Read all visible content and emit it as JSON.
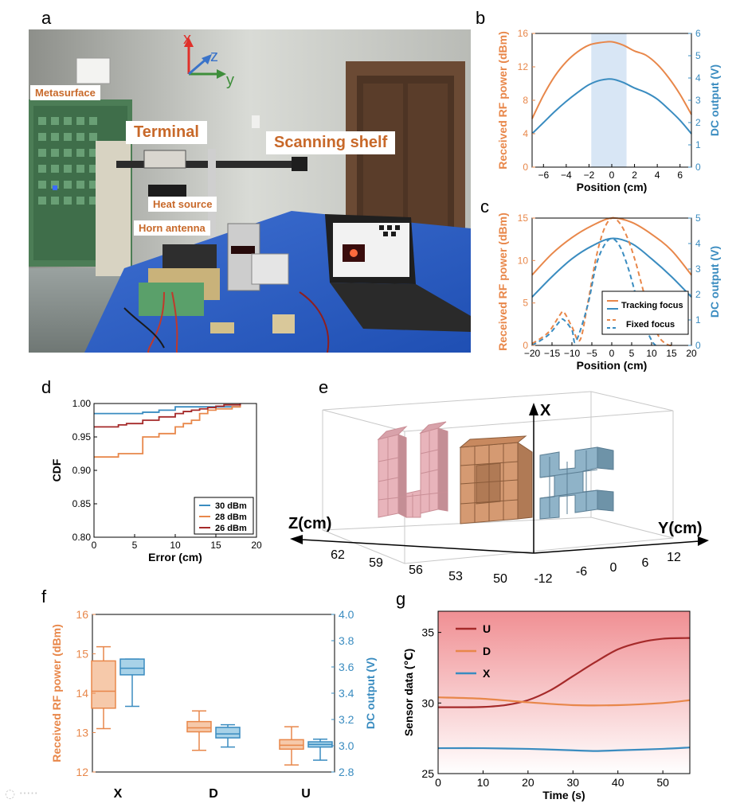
{
  "panels": {
    "a": "a",
    "b": "b",
    "c": "c",
    "d": "d",
    "e": "e",
    "f": "f",
    "g": "g"
  },
  "photo": {
    "labels": {
      "metasurface": "Metasurface",
      "terminal": "Terminal",
      "scanning_shelf": "Scanning shelf",
      "heat_source": "Heat source",
      "horn_antenna": "Horn antenna"
    },
    "axes": {
      "x": "x",
      "z": "z",
      "y": "y"
    },
    "colors": {
      "x": "#e0302a",
      "z": "#3a73c9",
      "y": "#3e8e3a"
    }
  },
  "colors": {
    "orange": "#e8874a",
    "blue": "#3a8cc0",
    "darkred": "#a52a2a",
    "shade": "#d8e6f5"
  },
  "panel_b": {
    "xlabel": "Position (cm)",
    "ylabel_left": "Received RF power (dBm)",
    "ylabel_right": "DC output (V)",
    "xticks": [
      "−6",
      "−4",
      "−2",
      "0",
      "2",
      "4",
      "6"
    ],
    "yticks_left": [
      "0",
      "4",
      "8",
      "12",
      "16"
    ],
    "yticks_right": [
      "0",
      "1",
      "2",
      "3",
      "4",
      "5",
      "6"
    ]
  },
  "panel_c": {
    "xlabel": "Position (cm)",
    "ylabel_left": "Received RF power (dBm)",
    "ylabel_right": "DC output (V)",
    "xticks": [
      "−20",
      "−15",
      "−10",
      "−5",
      "0",
      "5",
      "10",
      "15",
      "20"
    ],
    "yticks_left": [
      "0",
      "5",
      "10",
      "15"
    ],
    "yticks_right": [
      "0",
      "1",
      "2",
      "3",
      "4",
      "5"
    ],
    "legend": [
      "Tracking focus",
      "Fixed focus"
    ]
  },
  "panel_d": {
    "xlabel": "Error (cm)",
    "ylabel": "CDF",
    "xticks": [
      "0",
      "5",
      "10",
      "15",
      "20"
    ],
    "yticks": [
      "0.80",
      "0.85",
      "0.90",
      "0.95",
      "1.00"
    ],
    "legend": [
      "30 dBm",
      "28 dBm",
      "26 dBm"
    ]
  },
  "panel_e": {
    "axis_x": "X",
    "axis_y": "Y(cm)",
    "axis_z": "Z(cm)",
    "zticks": [
      "62",
      "59",
      "56",
      "53",
      "50"
    ],
    "yticks": [
      "-12",
      "-6",
      "0",
      "6",
      "12"
    ]
  },
  "panel_f": {
    "ylabel_left": "Received RF power (dBm)",
    "ylabel_right": "DC output (V)",
    "categories": [
      "X",
      "D",
      "U"
    ],
    "yticks_left": [
      "12",
      "13",
      "14",
      "15",
      "16"
    ],
    "yticks_right": [
      "2.8",
      "3.0",
      "3.2",
      "3.4",
      "3.6",
      "3.8",
      "4.0"
    ]
  },
  "panel_g": {
    "xlabel": "Time (s)",
    "ylabel": "Sensor data (℃)",
    "xticks": [
      "0",
      "10",
      "20",
      "30",
      "40",
      "50"
    ],
    "yticks": [
      "25",
      "30",
      "35"
    ],
    "legend": [
      "U",
      "D",
      "X"
    ]
  },
  "chart_data": [
    {
      "panel": "b",
      "type": "line",
      "xlabel": "Position (cm)",
      "ylabel": "Received RF power (dBm)",
      "ylabel_right": "DC output (V)",
      "xlim": [
        -7,
        7
      ],
      "ylim": [
        0,
        16
      ],
      "ylim_right": [
        0,
        6
      ],
      "shaded_region": [
        -1.8,
        1.3
      ],
      "series": [
        {
          "axis": "left",
          "x": [
            -7,
            -6,
            -5,
            -4,
            -3,
            -2,
            -1,
            0,
            1,
            2,
            3,
            4,
            5,
            6,
            7
          ],
          "values": [
            5.8,
            8.6,
            10.9,
            12.6,
            13.8,
            14.6,
            14.9,
            15.0,
            14.6,
            13.9,
            13.4,
            12.3,
            10.7,
            8.7,
            6.3
          ]
        },
        {
          "axis": "right",
          "x": [
            -7,
            -6,
            -5,
            -4,
            -3,
            -2,
            -1,
            0,
            1,
            2,
            3,
            4,
            5,
            6,
            7
          ],
          "values": [
            1.5,
            2.0,
            2.5,
            2.95,
            3.35,
            3.7,
            3.9,
            3.95,
            3.8,
            3.55,
            3.35,
            3.05,
            2.6,
            2.1,
            1.5
          ]
        }
      ]
    },
    {
      "panel": "c",
      "type": "line",
      "xlabel": "Position (cm)",
      "ylabel": "Received RF power (dBm)",
      "ylabel_right": "DC output (V)",
      "xlim": [
        -20,
        20
      ],
      "ylim": [
        0,
        15
      ],
      "ylim_right": [
        0,
        5
      ],
      "series": [
        {
          "name": "Tracking focus",
          "axis": "left",
          "style": "solid",
          "x": [
            -20,
            -15,
            -10,
            -5,
            0,
            5,
            10,
            15,
            20
          ],
          "values": [
            8.3,
            10.8,
            12.7,
            14.1,
            15.0,
            14.5,
            13.1,
            11.2,
            8.3
          ]
        },
        {
          "name": "Tracking focus",
          "axis": "right",
          "style": "solid",
          "x": [
            -20,
            -15,
            -10,
            -5,
            0,
            5,
            10,
            15,
            20
          ],
          "values": [
            1.9,
            2.7,
            3.4,
            3.9,
            4.2,
            4.0,
            3.4,
            2.7,
            1.9
          ]
        },
        {
          "name": "Fixed focus",
          "axis": "left",
          "style": "dashed",
          "x": [
            -20,
            -16,
            -13,
            -12,
            -10,
            -8,
            -6,
            -4,
            -2,
            0,
            2,
            4,
            6,
            8,
            10,
            12,
            14,
            15
          ],
          "values": [
            0.2,
            1.5,
            3.6,
            3.9,
            2.2,
            0.6,
            5.0,
            10.2,
            13.6,
            15.0,
            14.4,
            12.6,
            9.8,
            6.3,
            3.1,
            0.9,
            0.1,
            0.0
          ]
        },
        {
          "name": "Fixed focus",
          "axis": "right",
          "style": "dashed",
          "x": [
            -20,
            -16,
            -13,
            -12,
            -10,
            -9,
            -6,
            -4,
            -2,
            0,
            2,
            4,
            6,
            8,
            10,
            11
          ],
          "values": [
            0.0,
            0.4,
            0.95,
            1.0,
            0.6,
            0.15,
            1.6,
            3.1,
            3.9,
            4.2,
            3.9,
            3.1,
            2.0,
            0.9,
            0.2,
            0.0
          ]
        }
      ]
    },
    {
      "panel": "d",
      "type": "line",
      "xlabel": "Error (cm)",
      "ylabel": "CDF",
      "xlim": [
        0,
        20
      ],
      "ylim": [
        0.8,
        1.0
      ],
      "series": [
        {
          "name": "30 dBm",
          "x": [
            0,
            3,
            6,
            8,
            10,
            18
          ],
          "values": [
            0.985,
            0.985,
            0.987,
            0.99,
            0.995,
            1.0
          ]
        },
        {
          "name": "28 dBm",
          "x": [
            0,
            3,
            6,
            8,
            10,
            11,
            12,
            13,
            14,
            15,
            17,
            18
          ],
          "values": [
            0.92,
            0.925,
            0.95,
            0.955,
            0.965,
            0.97,
            0.975,
            0.985,
            0.99,
            0.992,
            0.995,
            1.0
          ]
        },
        {
          "name": "26 dBm",
          "x": [
            0,
            3,
            4,
            6,
            8,
            10,
            11,
            12,
            13,
            14,
            15,
            16,
            18
          ],
          "values": [
            0.965,
            0.968,
            0.97,
            0.975,
            0.98,
            0.985,
            0.988,
            0.99,
            0.992,
            0.994,
            0.996,
            0.998,
            1.0
          ]
        }
      ]
    },
    {
      "panel": "f",
      "type": "box",
      "categories": [
        "X",
        "D",
        "U"
      ],
      "ylabel": "Received RF power (dBm)",
      "ylabel_right": "DC output (V)",
      "ylim": [
        12,
        16
      ],
      "ylim_right": [
        2.8,
        4.0
      ],
      "series": [
        {
          "name": "Received RF power (dBm)",
          "axis": "left",
          "boxes": [
            {
              "min": 13.1,
              "q1": 13.62,
              "median": 14.05,
              "q3": 14.82,
              "max": 15.18
            },
            {
              "min": 12.55,
              "q1": 13.02,
              "median": 13.12,
              "q3": 13.28,
              "max": 13.55
            },
            {
              "min": 12.18,
              "q1": 12.58,
              "median": 12.68,
              "q3": 12.82,
              "max": 13.15
            }
          ]
        },
        {
          "name": "DC output (V)",
          "axis": "right",
          "boxes": [
            {
              "min": 3.3,
              "q1": 3.54,
              "median": 3.59,
              "q3": 3.66,
              "max": 3.66
            },
            {
              "min": 2.99,
              "q1": 3.06,
              "median": 3.09,
              "q3": 3.14,
              "max": 3.16
            },
            {
              "min": 2.89,
              "q1": 2.99,
              "median": 3.01,
              "q3": 3.03,
              "max": 3.05
            }
          ]
        }
      ]
    },
    {
      "panel": "g",
      "type": "line",
      "xlabel": "Time (s)",
      "ylabel": "Sensor data (℃)",
      "xlim": [
        0,
        56
      ],
      "ylim": [
        25,
        36.5
      ],
      "series": [
        {
          "name": "U",
          "x": [
            0,
            5,
            10,
            15,
            20,
            25,
            30,
            35,
            40,
            45,
            50,
            55,
            56
          ],
          "values": [
            29.7,
            29.7,
            29.72,
            29.85,
            30.2,
            30.9,
            31.9,
            32.9,
            33.8,
            34.3,
            34.55,
            34.6,
            34.6
          ]
        },
        {
          "name": "D",
          "x": [
            0,
            10,
            20,
            30,
            40,
            50,
            56
          ],
          "values": [
            30.4,
            30.3,
            30.05,
            29.85,
            29.85,
            30.0,
            30.2
          ]
        },
        {
          "name": "X",
          "x": [
            0,
            10,
            20,
            30,
            35,
            40,
            50,
            56
          ],
          "values": [
            26.8,
            26.8,
            26.75,
            26.65,
            26.6,
            26.65,
            26.75,
            26.85
          ]
        }
      ]
    }
  ]
}
